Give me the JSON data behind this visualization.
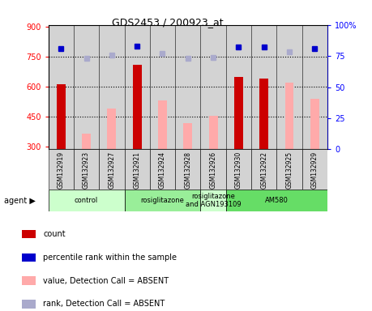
{
  "title": "GDS2453 / 200923_at",
  "samples": [
    "GSM132919",
    "GSM132923",
    "GSM132927",
    "GSM132921",
    "GSM132924",
    "GSM132928",
    "GSM132926",
    "GSM132930",
    "GSM132922",
    "GSM132925",
    "GSM132929"
  ],
  "count_values": [
    610,
    null,
    null,
    710,
    null,
    null,
    null,
    650,
    640,
    null,
    null
  ],
  "absent_value_bars": [
    null,
    365,
    490,
    null,
    530,
    415,
    455,
    null,
    null,
    620,
    540
  ],
  "rank_present": [
    790,
    null,
    null,
    805,
    null,
    null,
    null,
    800,
    800,
    null,
    790
  ],
  "rank_absent": [
    null,
    740,
    760,
    null,
    765,
    740,
    745,
    null,
    null,
    775,
    null
  ],
  "ylim_left": [
    285,
    910
  ],
  "ylim_right": [
    0,
    100
  ],
  "yticks_left": [
    300,
    450,
    600,
    750,
    900
  ],
  "yticks_right": [
    0,
    25,
    50,
    75,
    100
  ],
  "right_tick_labels": [
    "0",
    "25",
    "50",
    "75",
    "100%"
  ],
  "hlines": [
    450,
    600,
    750
  ],
  "agent_groups": [
    {
      "label": "control",
      "start": 0,
      "end": 3,
      "color": "#ccffcc"
    },
    {
      "label": "rosiglitazone",
      "start": 3,
      "end": 6,
      "color": "#99ee99"
    },
    {
      "label": "rosiglitazone\nand AGN193109",
      "start": 6,
      "end": 7,
      "color": "#ccffcc"
    },
    {
      "label": "AM580",
      "start": 7,
      "end": 11,
      "color": "#66dd66"
    }
  ],
  "bar_color_present": "#cc0000",
  "bar_color_absent": "#ffaaaa",
  "marker_color_present": "#0000cc",
  "marker_color_absent": "#aaaacc",
  "bar_width": 0.35,
  "cell_bg": "#d3d3d3",
  "plot_bg": "#ffffff"
}
